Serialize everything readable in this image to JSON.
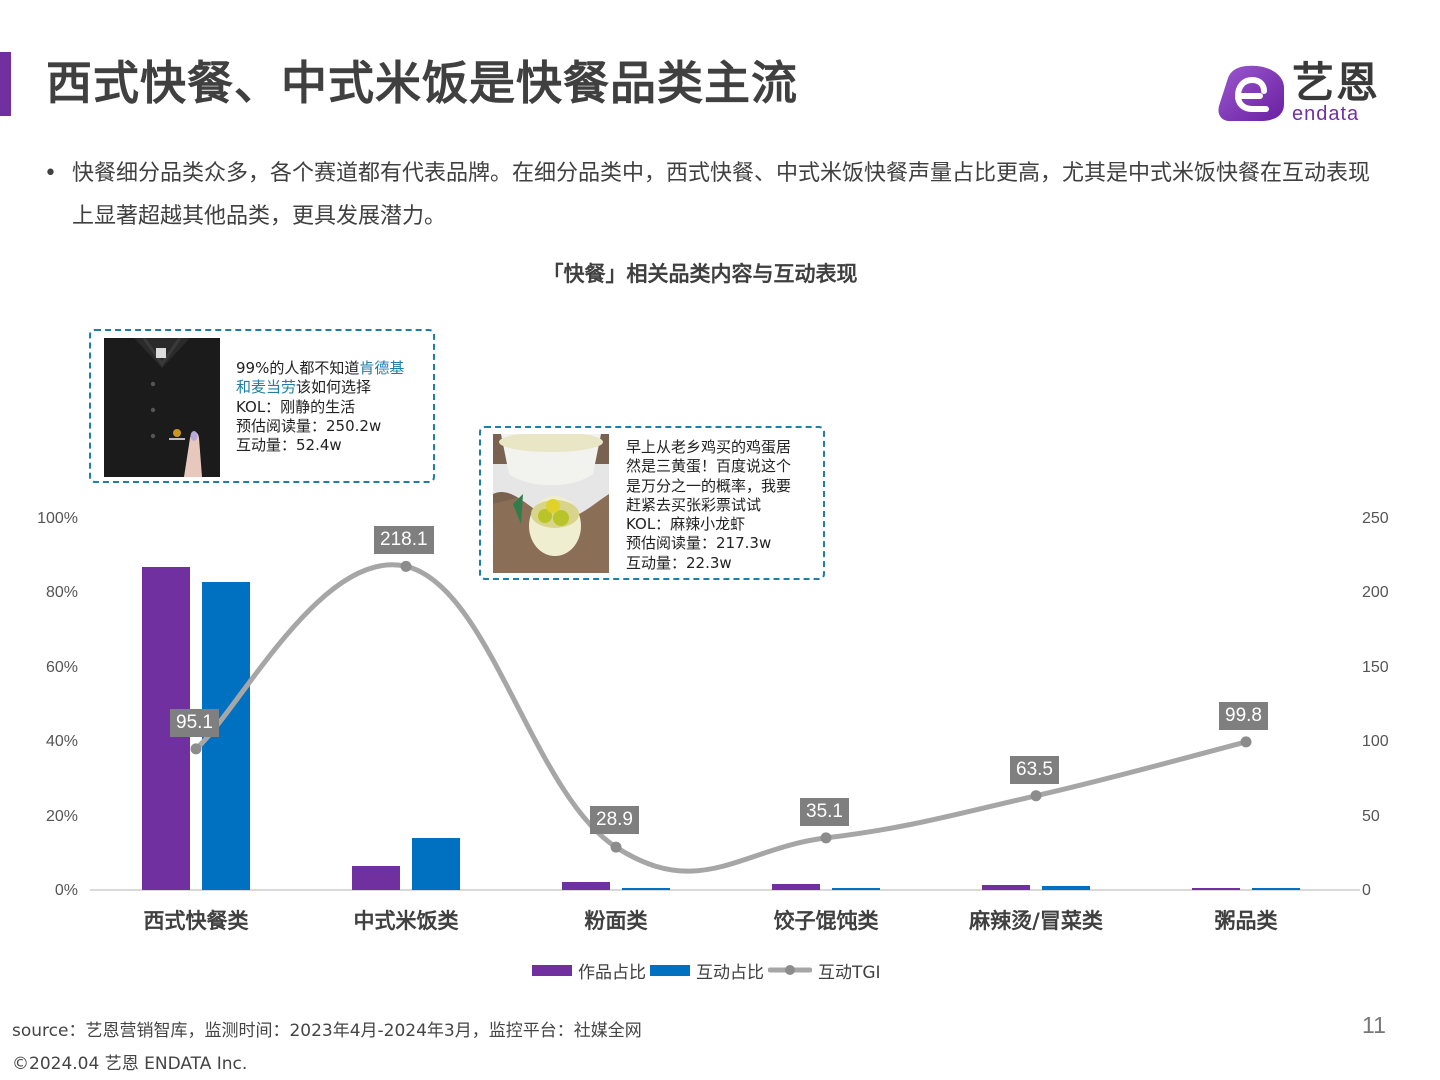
{
  "header": {
    "title": "西式快餐、中式米饭是快餐品类主流",
    "accent_color": "#7030a0",
    "logo": {
      "cn": "艺恩",
      "en": "endata",
      "icon": "endata-e-logo-icon"
    }
  },
  "summary": {
    "bullet_icon": "•",
    "text": "快餐细分品类众多，各个赛道都有代表品牌。在细分品类中，西式快餐、中式米饭快餐声量占比更高，尤其是中式米饭快餐在互动表现上显著超越其他品类，更具发展潜力。"
  },
  "chart_data": {
    "type": "bar+line",
    "title": "「快餐」相关品类内容与互动表现",
    "categories": [
      "西式快餐类",
      "中式米饭类",
      "粉面类",
      "饺子馄饨类",
      "麻辣烫/冒菜类",
      "粥品类"
    ],
    "series": [
      {
        "name": "作品占比",
        "type": "bar",
        "axis": "left",
        "color": "#7030a0",
        "values": [
          87,
          6.5,
          2.2,
          1.6,
          1.3,
          0.5
        ]
      },
      {
        "name": "互动占比",
        "type": "bar",
        "axis": "left",
        "color": "#0070c0",
        "values": [
          83,
          14,
          0.5,
          0.5,
          1.0,
          0.5
        ]
      },
      {
        "name": "互动TGI",
        "type": "line",
        "axis": "right",
        "color": "#a6a6a6",
        "smooth": true,
        "values": [
          95.1,
          218.1,
          28.9,
          35.1,
          63.5,
          99.8
        ]
      }
    ],
    "left_axis": {
      "ticks": [
        "100%",
        "80%",
        "60%",
        "40%",
        "20%",
        "0%"
      ],
      "ylim": [
        0,
        100
      ]
    },
    "right_axis": {
      "ticks": [
        "250",
        "200",
        "150",
        "100",
        "50",
        "0"
      ],
      "ylim": [
        0,
        250
      ]
    },
    "data_labels": [
      "95.1",
      "218.1",
      "28.9",
      "35.1",
      "63.5",
      "99.8"
    ],
    "legend": [
      "作品占比",
      "互动占比",
      "互动TGI"
    ],
    "legend_position": "bottom",
    "grid": false
  },
  "callouts": [
    {
      "thumb": "black-polo-shirt-image",
      "line1_plain": "99%的人都不知道",
      "line1_hl": "肯德基",
      "line2_hl": "和麦当劳",
      "line2_plain": "该如何选择",
      "kol": "KOL：刚静的生活",
      "reads": "预估阅读量：250.2w",
      "interactions": "互动量：52.4w"
    },
    {
      "thumb": "triple-yolk-egg-image",
      "lines": [
        "早上从老乡鸡买的鸡蛋居",
        "然是三黄蛋！百度说这个",
        "是万分之一的概率，我要",
        "赶紧去买张彩票试试"
      ],
      "kol": "KOL：麻辣小龙虾",
      "reads": "预估阅读量：217.3w",
      "interactions": "互动量：22.3w"
    }
  ],
  "footer": {
    "source": "source：艺恩营销智库，监测时间：2023年4月-2024年3月，监控平台：社媒全网",
    "copyright": "©2024.04  艺恩 ENDATA Inc.",
    "page_number": "11"
  }
}
